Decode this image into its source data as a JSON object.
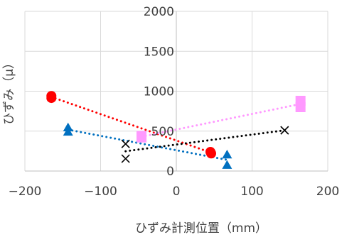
{
  "chart_data": {
    "type": "scatter",
    "title": "",
    "xlabel": "ひずみ計測位置（mm）",
    "ylabel": "ひずみ（μ）",
    "xlim": [
      -200,
      200
    ],
    "ylim": [
      0,
      2000
    ],
    "x_ticks": [
      -200,
      -100,
      0,
      100,
      200
    ],
    "y_ticks": [
      0,
      500,
      1000,
      1500,
      2000
    ],
    "x_tick_labels": [
      "−200",
      "−100",
      "0",
      "100",
      "200"
    ],
    "y_tick_labels": [
      "0",
      "500",
      "1000",
      "1500",
      "2000"
    ],
    "grid": "on",
    "legend": "none",
    "series": [
      {
        "marker": "circle",
        "color": "#FF0000",
        "trend_color": "#FF0000",
        "points": [
          [
            -165,
            940
          ],
          [
            -165,
            915
          ],
          [
            45,
            240
          ],
          [
            46,
            220
          ]
        ],
        "trend": [
          [
            -165,
            928
          ],
          [
            46,
            230
          ]
        ]
      },
      {
        "marker": "triangle",
        "color": "#0070C0",
        "trend_color": "#0070C0",
        "points": [
          [
            -143,
            545
          ],
          [
            -143,
            490
          ],
          [
            67,
            205
          ],
          [
            67,
            75
          ]
        ],
        "trend": [
          [
            -143,
            518
          ],
          [
            67,
            140
          ]
        ]
      },
      {
        "marker": "x",
        "color": "#000000",
        "trend_color": "#000000",
        "points": [
          [
            -67,
            340
          ],
          [
            -67,
            155
          ],
          [
            143,
            510
          ]
        ],
        "trend": [
          [
            -67,
            248
          ],
          [
            143,
            510
          ]
        ]
      },
      {
        "marker": "square",
        "color": "#FF99FF",
        "trend_color": "#FF99FF",
        "points": [
          [
            -46,
            440
          ],
          [
            -46,
            420
          ],
          [
            164,
            880
          ],
          [
            164,
            800
          ]
        ],
        "trend": [
          [
            -46,
            430
          ],
          [
            164,
            840
          ]
        ]
      }
    ]
  }
}
